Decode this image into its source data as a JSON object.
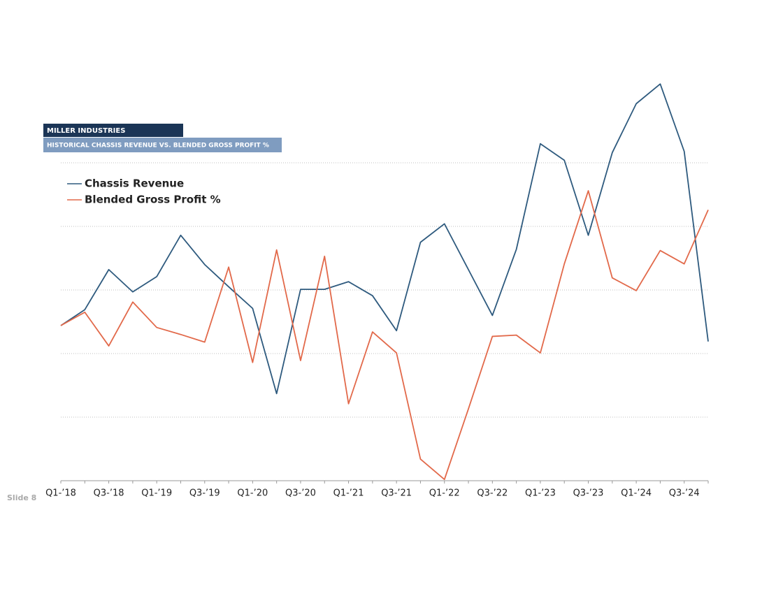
{
  "chart_data": {
    "type": "line",
    "header": "MILLER INDUSTRIES",
    "title": "HISTORICAL CHASSIS REVENUE VS. BLENDED GROSS PROFIT %",
    "footer": "Slide 8",
    "categories": [
      "Q1-’18",
      null,
      "Q3-’18",
      null,
      "Q1-’19",
      null,
      "Q3-’19",
      null,
      "Q1-’20",
      null,
      "Q3-’20",
      null,
      "Q1-’21",
      null,
      "Q3-’21",
      null,
      "Q1-’22",
      null,
      "Q3-’22",
      null,
      "Q1-’23",
      null,
      "Q3-’23",
      null,
      "Q1-’24",
      null,
      "Q3-’24",
      null
    ],
    "series": [
      {
        "name": "Chassis Revenue",
        "color": "#2e5a7e",
        "values": [
          2.44,
          2.69,
          3.32,
          2.97,
          3.21,
          3.86,
          3.4,
          3.05,
          2.71,
          1.37,
          3.01,
          3.01,
          3.13,
          2.91,
          2.36,
          3.75,
          4.04,
          3.32,
          2.6,
          3.64,
          5.3,
          5.04,
          3.86,
          5.16,
          5.93,
          6.24,
          5.18,
          2.19
        ]
      },
      {
        "name": "Blended Gross Profit %",
        "color": "#e2694a",
        "values": [
          2.44,
          2.65,
          2.12,
          2.81,
          2.41,
          2.3,
          2.18,
          3.36,
          1.86,
          3.63,
          1.89,
          3.53,
          1.21,
          2.34,
          2.01,
          0.34,
          0.02,
          1.13,
          2.27,
          2.29,
          2.01,
          3.41,
          4.56,
          3.19,
          2.99,
          3.62,
          3.41,
          4.26
        ]
      }
    ],
    "ylim": [
      0,
      6.5
    ],
    "yticks": [
      0,
      1,
      2,
      3,
      4,
      5
    ],
    "grid": true
  }
}
